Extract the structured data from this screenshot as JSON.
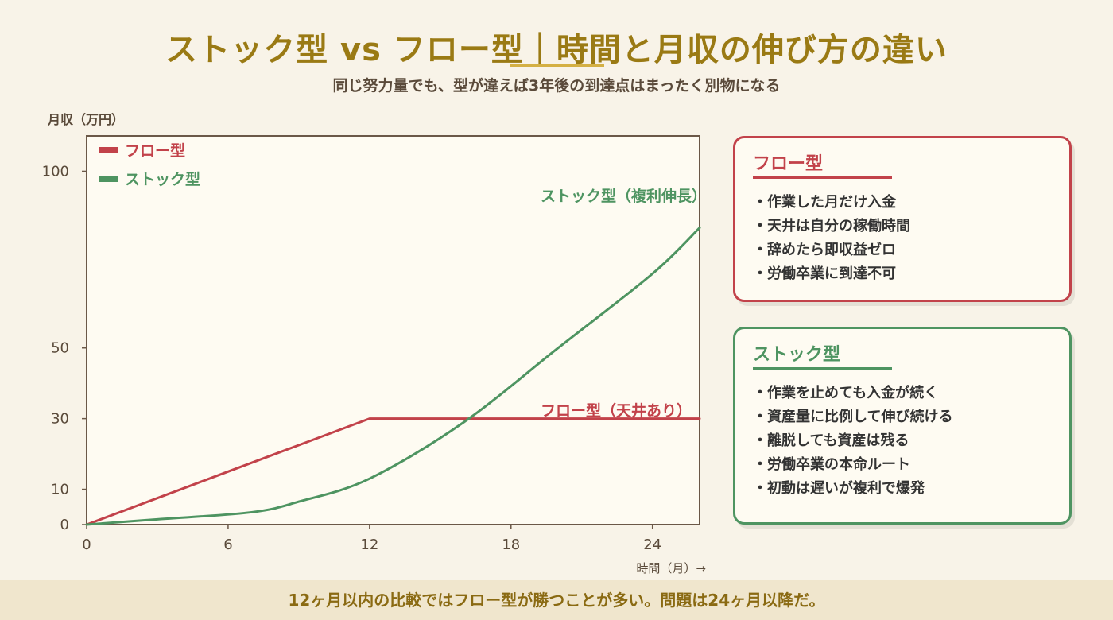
{
  "header": {
    "title": "ストック型 vs フロー型｜時間と月収の伸び方の違い",
    "subtitle": "同じ努力量でも、型が違えば3年後の到達点はまったく別物になる"
  },
  "chart_data": {
    "type": "line",
    "title": "ストック型 vs フロー型｜時間と月収の伸び方の違い",
    "xlabel": "時間（月）→",
    "ylabel": "月収（万円）",
    "xlim": [
      0,
      26
    ],
    "ylim": [
      0,
      110
    ],
    "x_ticks": [
      0,
      6,
      12,
      18,
      24
    ],
    "y_ticks": [
      0,
      10,
      30,
      50,
      100
    ],
    "grid": false,
    "legend_position": "top-left",
    "series": [
      {
        "name": "フロー型",
        "color": "#c2424a",
        "annotation": "フロー型（天井あり）",
        "x": [
          0,
          4,
          8,
          12,
          16,
          20,
          24,
          26
        ],
        "y": [
          0,
          10,
          20,
          30,
          30,
          30,
          30,
          30
        ]
      },
      {
        "name": "ストック型",
        "color": "#4e9461",
        "annotation": "ストック型（複利伸長）",
        "x": [
          0,
          3,
          7,
          9,
          12,
          16,
          20,
          24,
          26
        ],
        "y": [
          0,
          1.5,
          3.5,
          6.5,
          13,
          29,
          50,
          71,
          84
        ]
      }
    ]
  },
  "cards": {
    "flow": {
      "title": "フロー型",
      "items": [
        "・作業した月だけ入金",
        "・天井は自分の稼働時間",
        "・辞めたら即収益ゼロ",
        "・労働卒業に到達不可"
      ]
    },
    "stock": {
      "title": "ストック型",
      "items": [
        "・作業を止めても入金が続く",
        "・資産量に比例して伸び続ける",
        "・離脱しても資産は残る",
        "・労働卒業の本命ルート",
        "・初動は遅いが複利で爆発"
      ]
    }
  },
  "footer": {
    "text": "12ヶ月以内の比較ではフロー型が勝つことが多い。問題は24ヶ月以降だ。"
  }
}
